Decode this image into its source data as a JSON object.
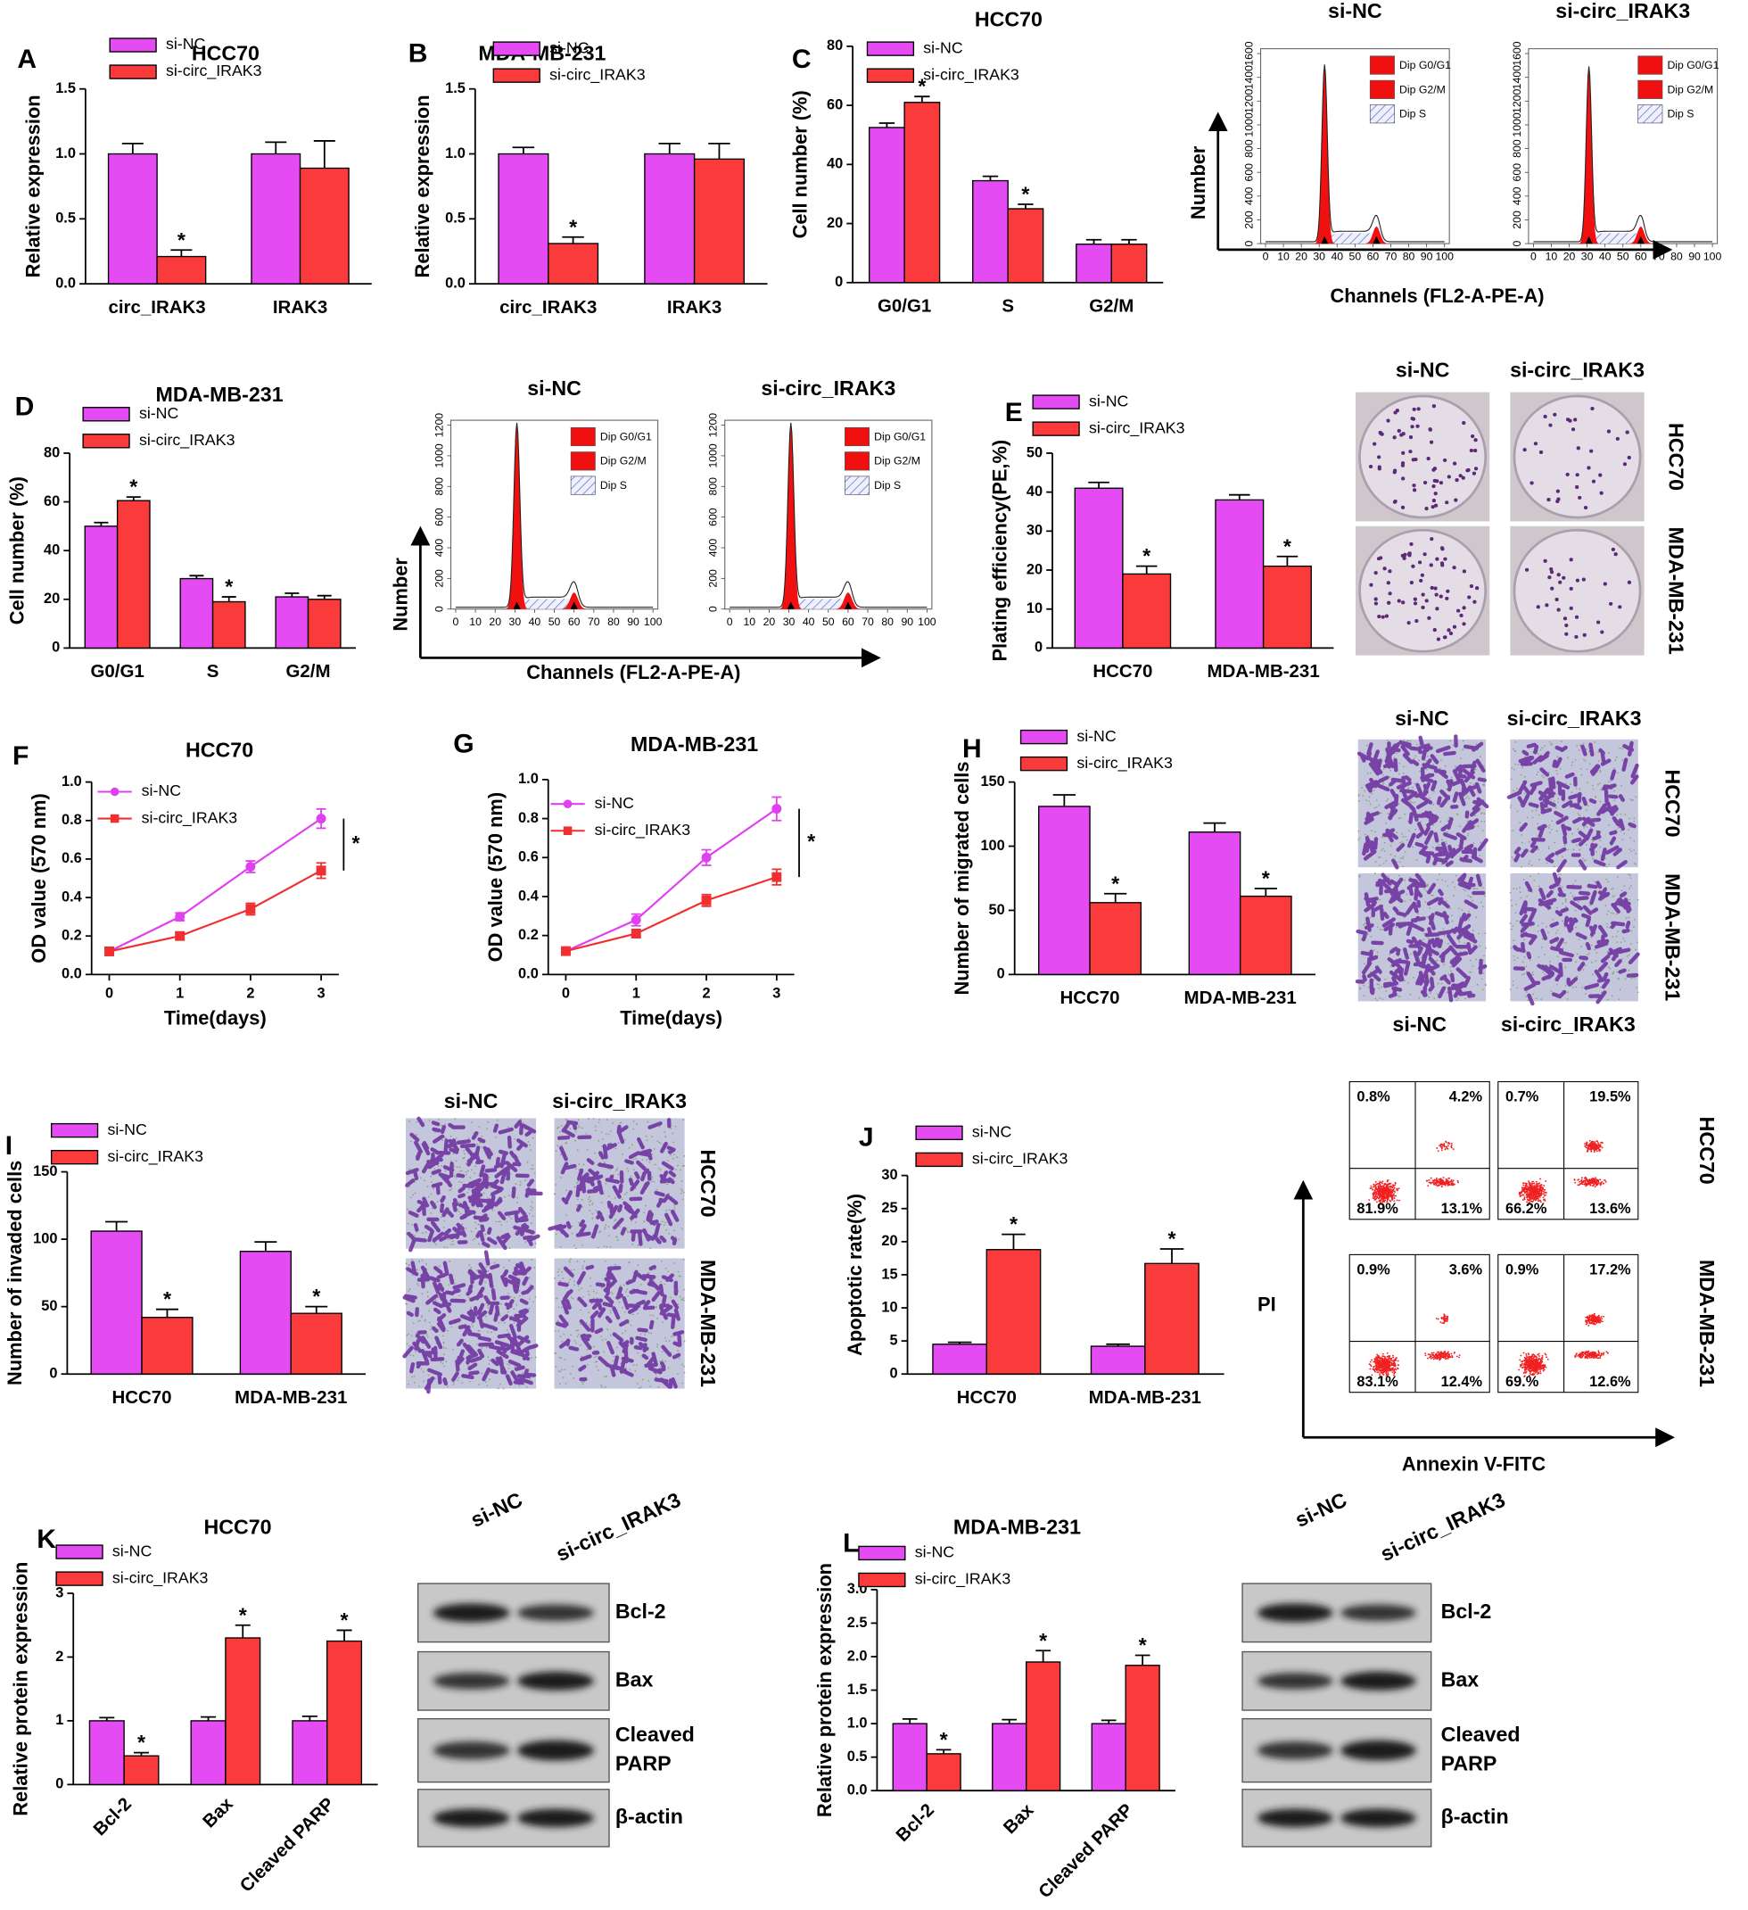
{
  "chart_data": [
    {
      "type": "bar",
      "title": "HCC70",
      "ylabel": "Relative expression",
      "categories": [
        "circ_IRAK3",
        "IRAK3"
      ],
      "series": [
        {
          "name": "si-NC",
          "color": "#e54bf3",
          "values": [
            1.0,
            1.0
          ],
          "errors": [
            0.08,
            0.09
          ]
        },
        {
          "name": "si-circ_IRAK3",
          "color": "#fb3b3b",
          "values": [
            0.21,
            0.89
          ],
          "errors": [
            0.05,
            0.21
          ],
          "significance": [
            "*",
            null
          ]
        }
      ],
      "ylim": [
        0,
        1.5
      ],
      "yticks": [
        {
          "value": 0,
          "label": "0.0"
        },
        0.5,
        {
          "value": 1,
          "label": "1.0"
        },
        1.5
      ]
    },
    {
      "type": "bar",
      "title": "MDA-MB-231",
      "ylabel": "Relative expression",
      "categories": [
        "circ_IRAK3",
        "IRAK3"
      ],
      "series": [
        {
          "name": "si-NC",
          "color": "#e54bf3",
          "values": [
            1.0,
            1.0
          ],
          "errors": [
            0.05,
            0.08
          ]
        },
        {
          "name": "si-circ_IRAK3",
          "color": "#fb3b3b",
          "values": [
            0.31,
            0.96
          ],
          "errors": [
            0.05,
            0.12
          ],
          "significance": [
            "*",
            null
          ]
        }
      ],
      "ylim": [
        0,
        1.5
      ],
      "yticks": [
        {
          "value": 0,
          "label": "0.0"
        },
        0.5,
        {
          "value": 1,
          "label": "1.0"
        },
        1.5
      ]
    },
    {
      "type": "bar",
      "title": "HCC70",
      "ylabel": "Cell number (%)",
      "categories": [
        "G0/G1",
        "S",
        "G2/M"
      ],
      "series": [
        {
          "name": "si-NC",
          "color": "#e54bf3",
          "values": [
            52.5,
            34.5,
            13
          ],
          "errors": [
            1.5,
            1.5,
            1.5
          ]
        },
        {
          "name": "si-circ_IRAK3",
          "color": "#fb3b3b",
          "values": [
            61,
            25,
            13
          ],
          "errors": [
            2,
            1.5,
            1.5
          ],
          "significance": [
            "*",
            "*",
            null
          ]
        }
      ],
      "ylim": [
        0,
        80
      ],
      "yticks": [
        0,
        20,
        40,
        60,
        80
      ]
    },
    {
      "type": "bar",
      "title": "MDA-MB-231",
      "ylabel": "Cell number (%)",
      "categories": [
        "G0/G1",
        "S",
        "G2/M"
      ],
      "series": [
        {
          "name": "si-NC",
          "color": "#e54bf3",
          "values": [
            50,
            28.5,
            21
          ],
          "errors": [
            1.5,
            1.2,
            1.5
          ]
        },
        {
          "name": "si-circ_IRAK3",
          "color": "#fb3b3b",
          "values": [
            60.5,
            19,
            20
          ],
          "errors": [
            1.5,
            2,
            1.5
          ],
          "significance": [
            "*",
            "*",
            null
          ]
        }
      ],
      "ylim": [
        0,
        80
      ],
      "yticks": [
        0,
        20,
        40,
        60,
        80
      ]
    },
    {
      "type": "bar",
      "ylabel": "Plating efficiency(PE,%)",
      "categories": [
        "HCC70",
        "MDA-MB-231"
      ],
      "series": [
        {
          "name": "si-NC",
          "color": "#e54bf3",
          "values": [
            41,
            38
          ],
          "errors": [
            1.5,
            1.3
          ]
        },
        {
          "name": "si-circ_IRAK3",
          "color": "#fb3b3b",
          "values": [
            19,
            21
          ],
          "errors": [
            2,
            2.5
          ],
          "significance": [
            "*",
            "*"
          ]
        }
      ],
      "ylim": [
        0,
        50
      ],
      "yticks": [
        0,
        10,
        20,
        30,
        40,
        50
      ]
    },
    {
      "type": "line",
      "title": "HCC70",
      "xlabel": "Time(days)",
      "ylabel": "OD value (570 nm)",
      "x": [
        0,
        1,
        2,
        3
      ],
      "series": [
        {
          "name": "si-NC",
          "color": "#e040f0",
          "values": [
            0.12,
            0.3,
            0.56,
            0.81
          ],
          "errors": [
            0.02,
            0.02,
            0.03,
            0.05
          ]
        },
        {
          "name": "si-circ_IRAK3",
          "color": "#f03030",
          "values": [
            0.12,
            0.2,
            0.34,
            0.54
          ],
          "errors": [
            0.02,
            0.02,
            0.03,
            0.04
          ]
        }
      ],
      "xlim": [
        -0.25,
        3.25
      ],
      "xticks": [
        0,
        1,
        2,
        3
      ],
      "ylim": [
        0,
        1
      ],
      "yticks": [
        {
          "value": 0,
          "label": "0.0"
        },
        0.2,
        0.4,
        0.6,
        0.8,
        {
          "value": 1,
          "label": "1.0"
        }
      ],
      "significance": "*"
    },
    {
      "type": "line",
      "title": "MDA-MB-231",
      "xlabel": "Time(days)",
      "ylabel": "OD value (570 nm)",
      "x": [
        0,
        1,
        2,
        3
      ],
      "series": [
        {
          "name": "si-NC",
          "color": "#e040f0",
          "values": [
            0.12,
            0.28,
            0.6,
            0.85
          ],
          "errors": [
            0.01,
            0.03,
            0.04,
            0.06
          ]
        },
        {
          "name": "si-circ_IRAK3",
          "color": "#f03030",
          "values": [
            0.12,
            0.21,
            0.38,
            0.5
          ],
          "errors": [
            0.01,
            0.02,
            0.03,
            0.04
          ]
        }
      ],
      "xlim": [
        -0.25,
        3.25
      ],
      "xticks": [
        0,
        1,
        2,
        3
      ],
      "ylim": [
        0,
        1
      ],
      "yticks": [
        {
          "value": 0,
          "label": "0.0"
        },
        0.2,
        0.4,
        0.6,
        0.8,
        {
          "value": 1,
          "label": "1.0"
        }
      ],
      "significance": "*"
    },
    {
      "type": "bar",
      "ylabel": "Number of migrated cells",
      "categories": [
        "HCC70",
        "MDA-MB-231"
      ],
      "series": [
        {
          "name": "si-NC",
          "color": "#e54bf3",
          "values": [
            131,
            111
          ],
          "errors": [
            9,
            7
          ]
        },
        {
          "name": "si-circ_IRAK3",
          "color": "#fb3b3b",
          "values": [
            56,
            61
          ],
          "errors": [
            7,
            6
          ],
          "significance": [
            "*",
            "*"
          ]
        }
      ],
      "ylim": [
        0,
        150
      ],
      "yticks": [
        0,
        50,
        100,
        150
      ]
    },
    {
      "type": "bar",
      "ylabel": "Number of invaded cells",
      "categories": [
        "HCC70",
        "MDA-MB-231"
      ],
      "series": [
        {
          "name": "si-NC",
          "color": "#e54bf3",
          "values": [
            106,
            91
          ],
          "errors": [
            7,
            7
          ]
        },
        {
          "name": "si-circ_IRAK3",
          "color": "#fb3b3b",
          "values": [
            42,
            45
          ],
          "errors": [
            6,
            5
          ],
          "significance": [
            "*",
            "*"
          ]
        }
      ],
      "ylim": [
        0,
        150
      ],
      "yticks": [
        0,
        50,
        100,
        150
      ]
    },
    {
      "type": "bar",
      "ylabel": "Apoptotic rate(%)",
      "categories": [
        "HCC70",
        "MDA-MB-231"
      ],
      "series": [
        {
          "name": "si-NC",
          "color": "#e54bf3",
          "values": [
            4.5,
            4.2
          ],
          "errors": [
            0.3,
            0.3
          ]
        },
        {
          "name": "si-circ_IRAK3",
          "color": "#fb3b3b",
          "values": [
            18.8,
            16.7
          ],
          "errors": [
            2.3,
            2.2
          ],
          "significance": [
            "*",
            "*"
          ]
        }
      ],
      "ylim": [
        0,
        30
      ],
      "yticks": [
        0,
        5,
        10,
        15,
        20,
        25,
        30
      ]
    },
    {
      "type": "bar",
      "title": "HCC70",
      "ylabel": "Relative protein expression",
      "categories": [
        "Bcl-2",
        "Bax",
        "Cleaved PARP"
      ],
      "series": [
        {
          "name": "si-NC",
          "color": "#e54bf3",
          "values": [
            1.0,
            1.0,
            1.0
          ],
          "errors": [
            0.05,
            0.06,
            0.07
          ]
        },
        {
          "name": "si-circ_IRAK3",
          "color": "#fb3b3b",
          "values": [
            0.45,
            2.3,
            2.25
          ],
          "errors": [
            0.05,
            0.2,
            0.17
          ],
          "significance": [
            "*",
            "*",
            "*"
          ]
        }
      ],
      "ylim": [
        0,
        3
      ],
      "yticks": [
        0,
        1,
        2,
        3
      ]
    },
    {
      "type": "bar",
      "title": "MDA-MB-231",
      "ylabel": "Relative protein expression",
      "categories": [
        "Bcl-2",
        "Bax",
        "Cleaved PARP"
      ],
      "series": [
        {
          "name": "si-NC",
          "color": "#e54bf3",
          "values": [
            1.0,
            1.0,
            1.0
          ],
          "errors": [
            0.07,
            0.06,
            0.05
          ]
        },
        {
          "name": "si-circ_IRAK3",
          "color": "#fb3b3b",
          "values": [
            0.55,
            1.92,
            1.87
          ],
          "errors": [
            0.06,
            0.17,
            0.15
          ],
          "significance": [
            "*",
            "*",
            "*"
          ]
        }
      ],
      "ylim": [
        0,
        3
      ],
      "yticks": [
        {
          "value": 0,
          "label": "0.0"
        },
        0.5,
        {
          "value": 1,
          "label": "1.0"
        },
        1.5,
        {
          "value": 2,
          "label": "2.0"
        },
        2.5,
        {
          "value": 3,
          "label": "3.0"
        }
      ]
    }
  ],
  "figure": {
    "panel_labels": [
      "A",
      "B",
      "C",
      "D",
      "E",
      "F",
      "G",
      "H",
      "I",
      "J",
      "K",
      "L"
    ],
    "flow_histograms": [
      {
        "title": "si-NC",
        "xticks": [
          0,
          10,
          20,
          30,
          40,
          50,
          60,
          70,
          80,
          90,
          100
        ],
        "yticks": [
          0,
          200,
          400,
          600,
          800,
          1000,
          1200,
          1400,
          1600
        ],
        "legend": [
          "Dip G0/G1",
          "Dip G2/M",
          "Dip S"
        ]
      },
      {
        "title": "si-circ_IRAK3",
        "xticks": [
          0,
          10,
          20,
          30,
          40,
          50,
          60,
          70,
          80,
          90,
          100
        ],
        "yticks": [
          0,
          200,
          400,
          600,
          800,
          1000,
          1200,
          1400,
          1600
        ],
        "legend": [
          "Dip G0/G1",
          "Dip G2/M",
          "Dip S"
        ]
      },
      {
        "title": "si-NC",
        "xticks": [
          0,
          10,
          20,
          30,
          40,
          50,
          60,
          70,
          80,
          90,
          100
        ],
        "yticks": [
          0,
          200,
          400,
          600,
          800,
          1000,
          1200
        ],
        "legend": [
          "Dip G0/G1",
          "Dip G2/M",
          "Dip S"
        ]
      },
      {
        "title": "si-circ_IRAK3",
        "xticks": [
          0,
          10,
          20,
          30,
          40,
          50,
          60,
          70,
          80,
          90,
          100
        ],
        "yticks": [
          0,
          200,
          400,
          600,
          800,
          1000,
          1200
        ],
        "legend": [
          "Dip G0/G1",
          "Dip G2/M",
          "Dip S"
        ]
      }
    ],
    "flow_axes": [
      {
        "ylabel": "Number",
        "xlabel": "Channels (FL2-A-PE-A)"
      },
      {
        "ylabel": "Number",
        "xlabel": "Channels (FL2-A-PE-A)"
      }
    ],
    "colony_images": {
      "columns": [
        "si-NC",
        "si-circ_IRAK3"
      ],
      "rows": [
        "HCC70",
        "MDA-MB-231"
      ]
    },
    "transwell_images": [
      {
        "columns": [
          "si-NC",
          "si-circ_IRAK3"
        ],
        "rows": [
          "HCC70",
          "MDA-MB-231"
        ]
      },
      {
        "columns": [
          "si-NC",
          "si-circ_IRAK3"
        ],
        "rows": [
          "HCC70",
          "MDA-MB-231"
        ]
      }
    ],
    "apoptosis_plots": {
      "columns": [
        "si-NC",
        "si-circ_IRAK3"
      ],
      "rows": [
        "HCC70",
        "MDA-MB-231"
      ],
      "quadrants": [
        [
          "0.8%",
          "4.2%",
          "81.9%",
          "13.1%"
        ],
        [
          "0.7%",
          "19.5%",
          "66.2%",
          "13.6%"
        ],
        [
          "0.9%",
          "3.6%",
          "83.1%",
          "12.4%"
        ],
        [
          "0.9%",
          "17.2%",
          "69.%",
          "12.6%"
        ]
      ],
      "ylabel": "PI",
      "xlabel": "Annexin V-FITC"
    },
    "western_blots": [
      {
        "columns": [
          "si-NC",
          "si-circ_IRAK3"
        ],
        "rows": [
          [
            "Bcl-2"
          ],
          [
            "Bax"
          ],
          [
            "Cleaved",
            "PARP"
          ],
          [
            "β-actin"
          ]
        ]
      },
      {
        "columns": [
          "si-NC",
          "si-circ_IRAK3"
        ],
        "rows": [
          [
            "Bcl-2"
          ],
          [
            "Bax"
          ],
          [
            "Cleaved",
            "PARP"
          ],
          [
            "β-actin"
          ]
        ]
      }
    ]
  }
}
